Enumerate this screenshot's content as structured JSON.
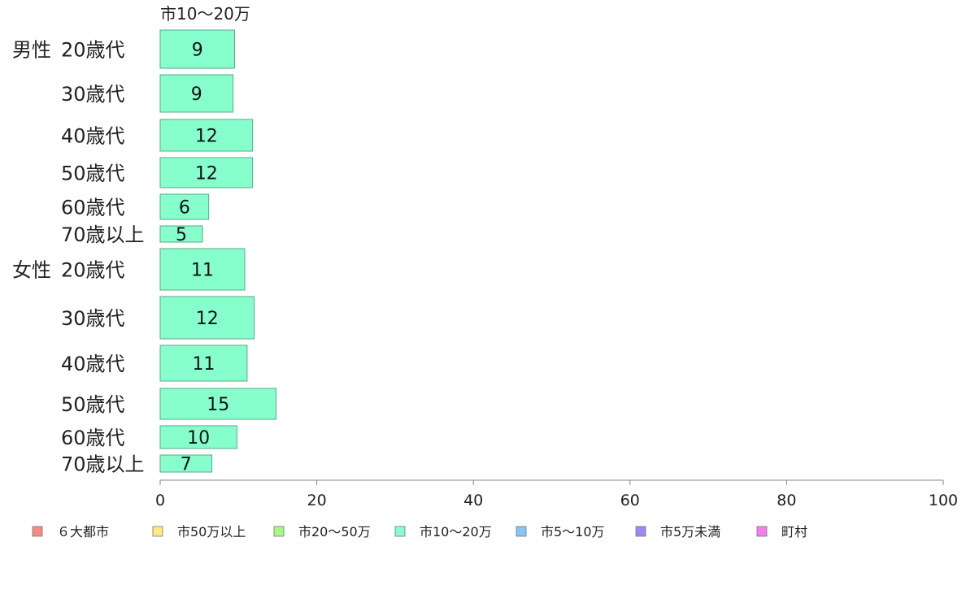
{
  "chart_data": {
    "type": "bar",
    "orientation": "horizontal",
    "series_title": "市10〜20万",
    "groups": [
      "男性",
      "女性"
    ],
    "categories": [
      {
        "group": "男性",
        "label": "20歳代"
      },
      {
        "group": "男性",
        "label": "30歳代"
      },
      {
        "group": "男性",
        "label": "40歳代"
      },
      {
        "group": "男性",
        "label": "50歳代"
      },
      {
        "group": "男性",
        "label": "60歳代"
      },
      {
        "group": "男性",
        "label": "70歳以上"
      },
      {
        "group": "女性",
        "label": "20歳代"
      },
      {
        "group": "女性",
        "label": "30歳代"
      },
      {
        "group": "女性",
        "label": "40歳代"
      },
      {
        "group": "女性",
        "label": "50歳代"
      },
      {
        "group": "女性",
        "label": "60歳代"
      },
      {
        "group": "女性",
        "label": "70歳以上"
      }
    ],
    "series": [
      {
        "name": "市10〜20万",
        "color": "#86ffcc",
        "values": [
          9.5,
          9.3,
          11.8,
          11.8,
          6.2,
          5.4,
          10.8,
          12.0,
          11.1,
          14.8,
          9.8,
          6.6
        ],
        "labels": [
          "9",
          "9",
          "12",
          "12",
          "6",
          "5",
          "11",
          "12",
          "11",
          "15",
          "10",
          "7"
        ]
      }
    ],
    "x_ticks": [
      "0",
      "20",
      "40",
      "60",
      "80",
      "100"
    ],
    "xlim": [
      0,
      100
    ],
    "grid": false,
    "legend": {
      "placement": "bottom",
      "entries": [
        {
          "name": "６大都市",
          "color": "#fa8a80"
        },
        {
          "name": "市50万以上",
          "color": "#fcea80"
        },
        {
          "name": "市20〜50万",
          "color": "#a8f982"
        },
        {
          "name": "市10〜20万",
          "color": "#86ffcc"
        },
        {
          "name": "市5〜10万",
          "color": "#84c6f7"
        },
        {
          "name": "市5万未満",
          "color": "#a186f7"
        },
        {
          "name": "町村",
          "color": "#f77ef0"
        }
      ]
    }
  }
}
